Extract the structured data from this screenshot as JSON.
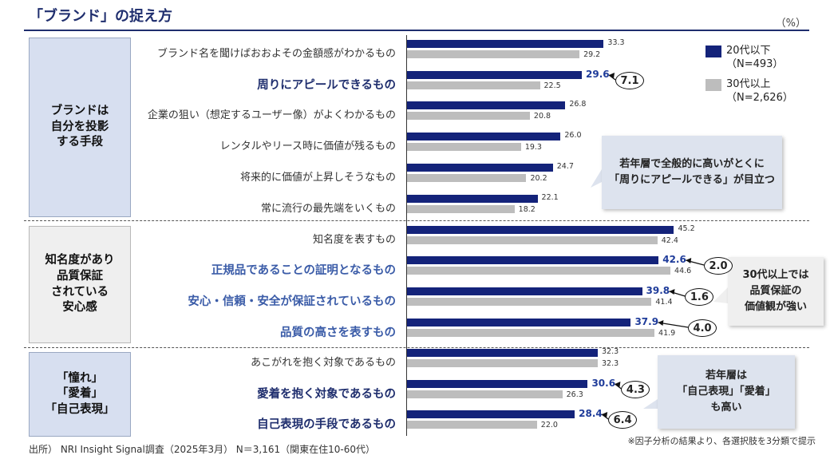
{
  "header": {
    "title": "「ブランド」の捉え方",
    "unit": "（%）"
  },
  "groups": [
    {
      "label": "ブランドは\n自分を投影\nする手段"
    },
    {
      "label": "知名度があり\n品質保証\nされている\n安心感"
    },
    {
      "label": "「憧れ」\n「愛着」\n「自己表現」"
    }
  ],
  "legend": [
    {
      "label": "20代以下\n（N=493）",
      "color": "#14237a"
    },
    {
      "label": "30代以上\n（N=2,626）",
      "color": "#bdbdbd"
    }
  ],
  "callouts": [
    "若年層で全般的に高いがとくに\n「周りにアピールできる」が目立つ",
    "30代以上では\n品質保証の\n価値観が強い",
    "若年層は\n「自己表現」「愛着」\nも高い"
  ],
  "footer": {
    "source": "出所） NRI Insight Signal調査（2025年3月） N＝3,161（関東在住10-60代）",
    "note": "※因子分析の結果より、各選択肢を3分類で提示"
  },
  "chart_data": {
    "type": "bar",
    "orientation": "horizontal",
    "categories": [
      "ブランド名を聞けばおおよその金額感がわかるもの",
      "周りにアピールできるもの",
      "企業の狙い（想定するユーザー像）がよくわかるもの",
      "レンタルやリース時に価値が残るもの",
      "将来的に価値が上昇しそうなもの",
      "常に流行の最先端をいくもの",
      "知名度を表すもの",
      "正規品であることの証明となるもの",
      "安心・信頼・安全が保証されているもの",
      "品質の高さを表すもの",
      "あこがれを抱く対象であるもの",
      "愛着を抱く対象であるもの",
      "自己表現の手段であるもの"
    ],
    "series": [
      {
        "name": "20代以下",
        "values": [
          33.3,
          29.6,
          26.8,
          26.0,
          24.7,
          22.1,
          45.2,
          42.6,
          39.8,
          37.9,
          32.3,
          30.6,
          28.4
        ]
      },
      {
        "name": "30代以上",
        "values": [
          29.2,
          22.5,
          20.8,
          19.3,
          20.2,
          18.2,
          42.4,
          44.6,
          41.4,
          41.9,
          32.3,
          26.3,
          22.0
        ]
      }
    ],
    "value_labels": [
      [
        "33.3",
        "29.2"
      ],
      [
        "29.6",
        "22.5"
      ],
      [
        "26.8",
        "20.8"
      ],
      [
        "26.0",
        "19.3"
      ],
      [
        "24.7",
        "20.2"
      ],
      [
        "22.1",
        "18.2"
      ],
      [
        "45.2",
        "42.4"
      ],
      [
        "42.6",
        "44.6"
      ],
      [
        "39.8",
        "41.4"
      ],
      [
        "37.9",
        "41.9"
      ],
      [
        "32.3",
        "32.3"
      ],
      [
        "30.6",
        "26.3"
      ],
      [
        "28.4",
        "22.0"
      ]
    ],
    "highlight": [
      "none",
      "dark",
      "none",
      "none",
      "none",
      "none",
      "none",
      "light",
      "light",
      "light",
      "none",
      "dark",
      "dark"
    ],
    "differences": [
      {
        "row": 1,
        "label": "7.1"
      },
      {
        "row": 7,
        "label": "2.0"
      },
      {
        "row": 8,
        "label": "1.6"
      },
      {
        "row": 9,
        "label": "4.0"
      },
      {
        "row": 11,
        "label": "4.3"
      },
      {
        "row": 12,
        "label": "6.4"
      }
    ],
    "xlim": [
      0,
      50
    ]
  }
}
